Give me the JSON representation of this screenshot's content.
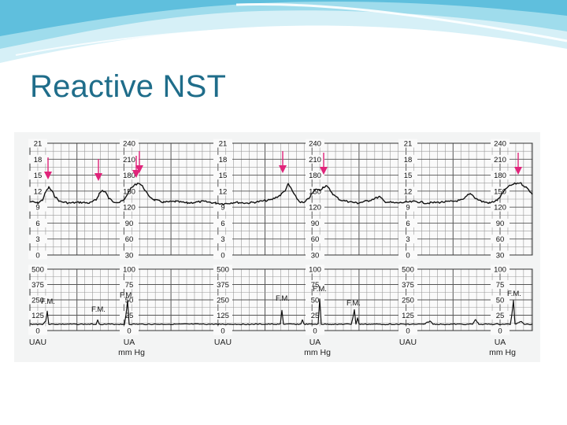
{
  "slide": {
    "title": "Reactive NST",
    "colors": {
      "title": "#1f6d8a",
      "arrow": "#e0247a",
      "trace": "#111111",
      "grid_major": "#555555",
      "grid_minor": "#9a9a9a",
      "header_wave_light": "#c9ecf5",
      "header_wave_mid": "#7fcfe6",
      "header_wave_dark": "#3aa9cf"
    }
  },
  "figure": {
    "fhr_panel": {
      "uterine_scale": [
        "21",
        "18",
        "15",
        "12",
        "9",
        "6",
        "3",
        "0"
      ],
      "fhr_scale": [
        "240",
        "210",
        "180",
        "150",
        "120",
        "90",
        "60",
        "30"
      ]
    },
    "ua_panel": {
      "uau_scale": [
        "500",
        "375",
        "250",
        "125",
        "0"
      ],
      "ua_scale": [
        "100",
        "75",
        "50",
        "25",
        "0"
      ],
      "events": [
        {
          "label": "F.M."
        },
        {
          "label": "F.M."
        },
        {
          "label": "F.M."
        },
        {
          "label": "F.M."
        },
        {
          "label": "F.M."
        },
        {
          "label": "F.M."
        },
        {
          "label": "F.M."
        }
      ]
    },
    "bottom_labels": [
      {
        "line1": "UAU",
        "line2": ""
      },
      {
        "line1": "UA",
        "line2": "mm Hg"
      },
      {
        "line1": "UAU",
        "line2": ""
      },
      {
        "line1": "UA",
        "line2": "mm Hg"
      },
      {
        "line1": "UAU",
        "line2": ""
      },
      {
        "line1": "UA",
        "line2": "mm Hg"
      }
    ],
    "accelerations": {
      "count": 7
    }
  }
}
